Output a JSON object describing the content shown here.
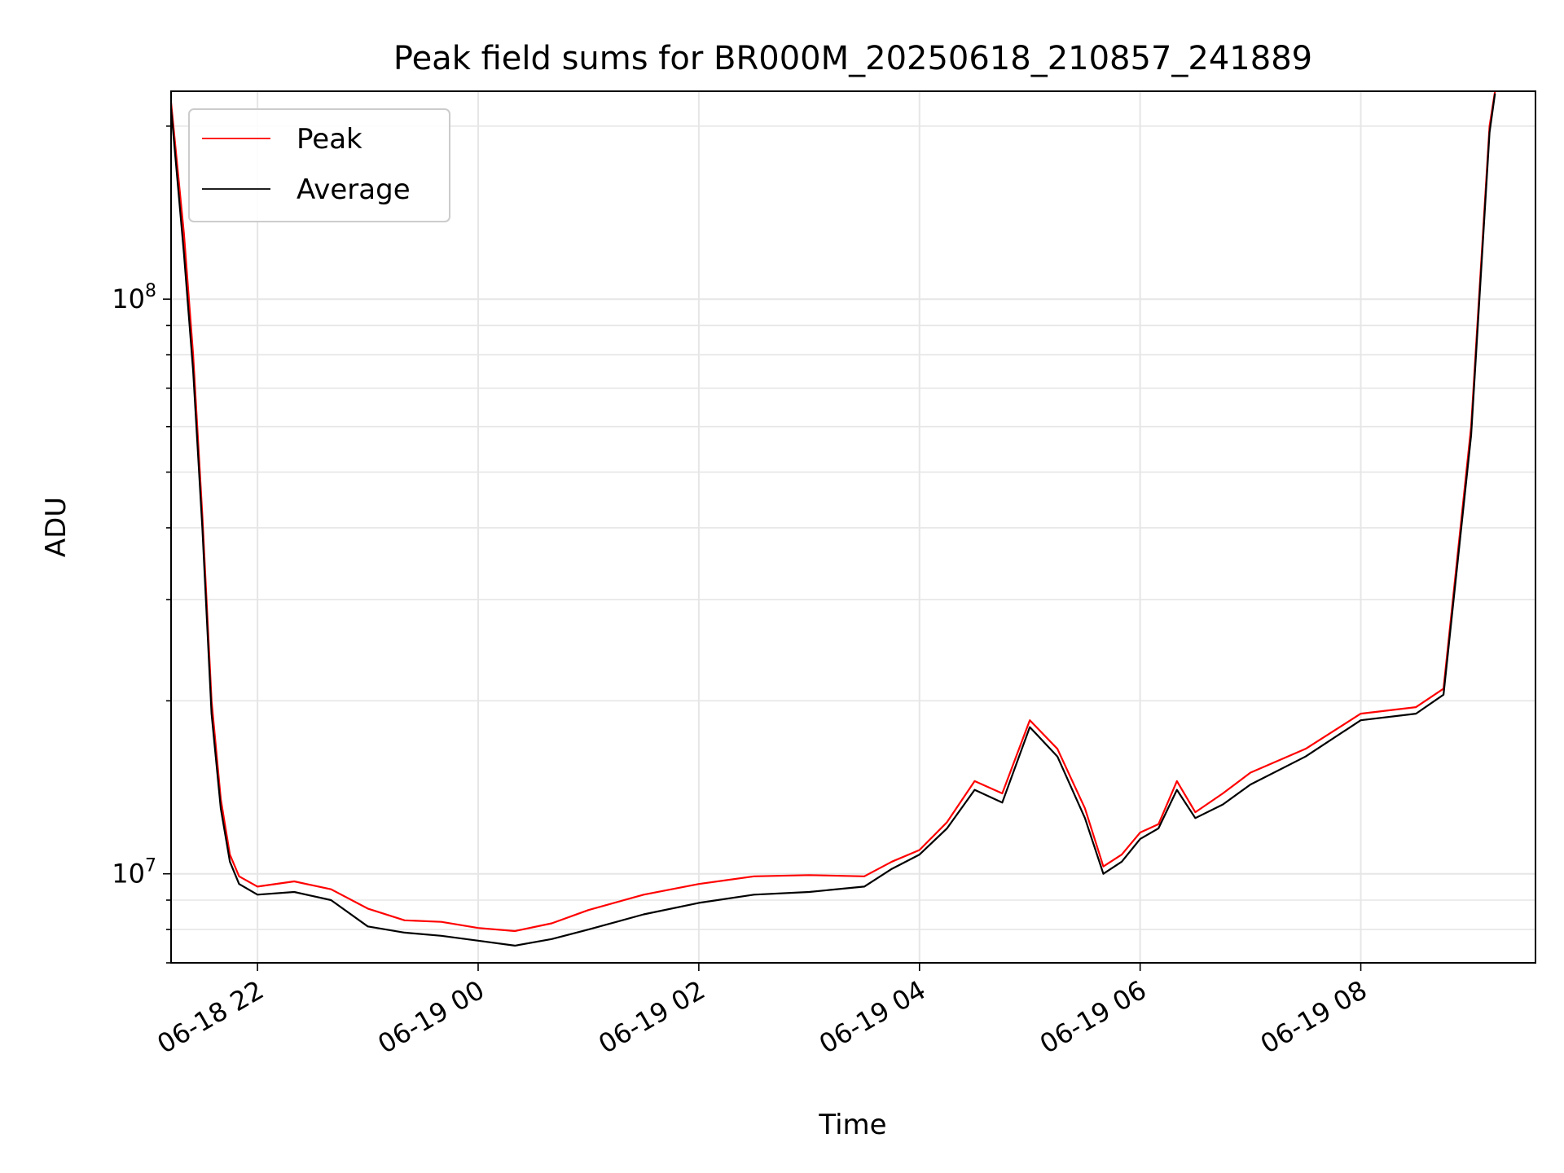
{
  "chart_data": {
    "type": "line",
    "title": "Peak field sums for BR000M_20250618_210857_241889",
    "xlabel": "Time",
    "ylabel": "ADU",
    "yscale": "log",
    "ylim": [
      7000000,
      230000000
    ],
    "xlim": [
      "2025-06-18 21:13",
      "2025-06-19 09:35"
    ],
    "x_ticks": [
      "06-18 22",
      "06-19 00",
      "06-19 02",
      "06-19 04",
      "06-19 06",
      "06-19 08"
    ],
    "y_ticks": [
      {
        "base": "10",
        "exp": "8",
        "value": 100000000
      },
      {
        "base": "10",
        "exp": "7",
        "value": 10000000
      }
    ],
    "grid": true,
    "legend": {
      "position": "top-left",
      "entries": [
        "Peak",
        "Average"
      ]
    },
    "colors": {
      "Peak": "#ff0000",
      "Average": "#000000"
    },
    "series": [
      {
        "name": "Peak",
        "color": "#ff0000",
        "points": [
          [
            "2025-06-18 21:13",
            220000000
          ],
          [
            "2025-06-18 21:20",
            130000000
          ],
          [
            "2025-06-18 21:25",
            80000000
          ],
          [
            "2025-06-18 21:30",
            42000000
          ],
          [
            "2025-06-18 21:35",
            20000000
          ],
          [
            "2025-06-18 21:40",
            13500000
          ],
          [
            "2025-06-18 21:45",
            10800000
          ],
          [
            "2025-06-18 21:50",
            9900000
          ],
          [
            "2025-06-18 22:00",
            9500000
          ],
          [
            "2025-06-18 22:20",
            9700000
          ],
          [
            "2025-06-18 22:40",
            9400000
          ],
          [
            "2025-06-18 23:00",
            8700000
          ],
          [
            "2025-06-18 23:20",
            8300000
          ],
          [
            "2025-06-18 23:40",
            8250000
          ],
          [
            "2025-06-19 00:00",
            8050000
          ],
          [
            "2025-06-19 00:20",
            7950000
          ],
          [
            "2025-06-19 00:40",
            8200000
          ],
          [
            "2025-06-19 01:00",
            8650000
          ],
          [
            "2025-06-19 01:30",
            9200000
          ],
          [
            "2025-06-19 02:00",
            9600000
          ],
          [
            "2025-06-19 02:30",
            9900000
          ],
          [
            "2025-06-19 03:00",
            9950000
          ],
          [
            "2025-06-19 03:30",
            9900000
          ],
          [
            "2025-06-19 03:45",
            10500000
          ],
          [
            "2025-06-19 04:00",
            11000000
          ],
          [
            "2025-06-19 04:15",
            12300000
          ],
          [
            "2025-06-19 04:30",
            14500000
          ],
          [
            "2025-06-19 04:45",
            13800000
          ],
          [
            "2025-06-19 05:00",
            18500000
          ],
          [
            "2025-06-19 05:15",
            16500000
          ],
          [
            "2025-06-19 05:30",
            13000000
          ],
          [
            "2025-06-19 05:40",
            10300000
          ],
          [
            "2025-06-19 05:50",
            10800000
          ],
          [
            "2025-06-19 06:00",
            11800000
          ],
          [
            "2025-06-19 06:10",
            12200000
          ],
          [
            "2025-06-19 06:20",
            14500000
          ],
          [
            "2025-06-19 06:30",
            12800000
          ],
          [
            "2025-06-19 06:45",
            13800000
          ],
          [
            "2025-06-19 07:00",
            15000000
          ],
          [
            "2025-06-19 07:30",
            16500000
          ],
          [
            "2025-06-19 08:00",
            19000000
          ],
          [
            "2025-06-19 08:30",
            19500000
          ],
          [
            "2025-06-19 08:45",
            21000000
          ],
          [
            "2025-06-19 09:00",
            60000000
          ],
          [
            "2025-06-19 09:10",
            200000000
          ],
          [
            "2025-06-19 09:13",
            230000000
          ]
        ]
      },
      {
        "name": "Average",
        "color": "#000000",
        "points": [
          [
            "2025-06-18 21:13",
            215000000
          ],
          [
            "2025-06-18 21:20",
            120000000
          ],
          [
            "2025-06-18 21:25",
            75000000
          ],
          [
            "2025-06-18 21:30",
            40000000
          ],
          [
            "2025-06-18 21:35",
            19000000
          ],
          [
            "2025-06-18 21:40",
            13000000
          ],
          [
            "2025-06-18 21:45",
            10500000
          ],
          [
            "2025-06-18 21:50",
            9600000
          ],
          [
            "2025-06-18 22:00",
            9200000
          ],
          [
            "2025-06-18 22:20",
            9300000
          ],
          [
            "2025-06-18 22:40",
            9000000
          ],
          [
            "2025-06-18 23:00",
            8100000
          ],
          [
            "2025-06-18 23:20",
            7900000
          ],
          [
            "2025-06-18 23:40",
            7800000
          ],
          [
            "2025-06-19 00:00",
            7650000
          ],
          [
            "2025-06-19 00:20",
            7500000
          ],
          [
            "2025-06-19 00:40",
            7700000
          ],
          [
            "2025-06-19 01:00",
            8000000
          ],
          [
            "2025-06-19 01:30",
            8500000
          ],
          [
            "2025-06-19 02:00",
            8900000
          ],
          [
            "2025-06-19 02:30",
            9200000
          ],
          [
            "2025-06-19 03:00",
            9300000
          ],
          [
            "2025-06-19 03:30",
            9500000
          ],
          [
            "2025-06-19 03:45",
            10200000
          ],
          [
            "2025-06-19 04:00",
            10800000
          ],
          [
            "2025-06-19 04:15",
            12000000
          ],
          [
            "2025-06-19 04:30",
            14000000
          ],
          [
            "2025-06-19 04:45",
            13300000
          ],
          [
            "2025-06-19 05:00",
            18000000
          ],
          [
            "2025-06-19 05:15",
            16000000
          ],
          [
            "2025-06-19 05:30",
            12500000
          ],
          [
            "2025-06-19 05:40",
            10000000
          ],
          [
            "2025-06-19 05:50",
            10500000
          ],
          [
            "2025-06-19 06:00",
            11500000
          ],
          [
            "2025-06-19 06:10",
            12000000
          ],
          [
            "2025-06-19 06:20",
            14000000
          ],
          [
            "2025-06-19 06:30",
            12500000
          ],
          [
            "2025-06-19 06:45",
            13200000
          ],
          [
            "2025-06-19 07:00",
            14300000
          ],
          [
            "2025-06-19 07:30",
            16000000
          ],
          [
            "2025-06-19 08:00",
            18500000
          ],
          [
            "2025-06-19 08:30",
            19000000
          ],
          [
            "2025-06-19 08:45",
            20500000
          ],
          [
            "2025-06-19 09:00",
            58000000
          ],
          [
            "2025-06-19 09:10",
            195000000
          ],
          [
            "2025-06-19 09:13",
            228000000
          ]
        ]
      }
    ]
  }
}
